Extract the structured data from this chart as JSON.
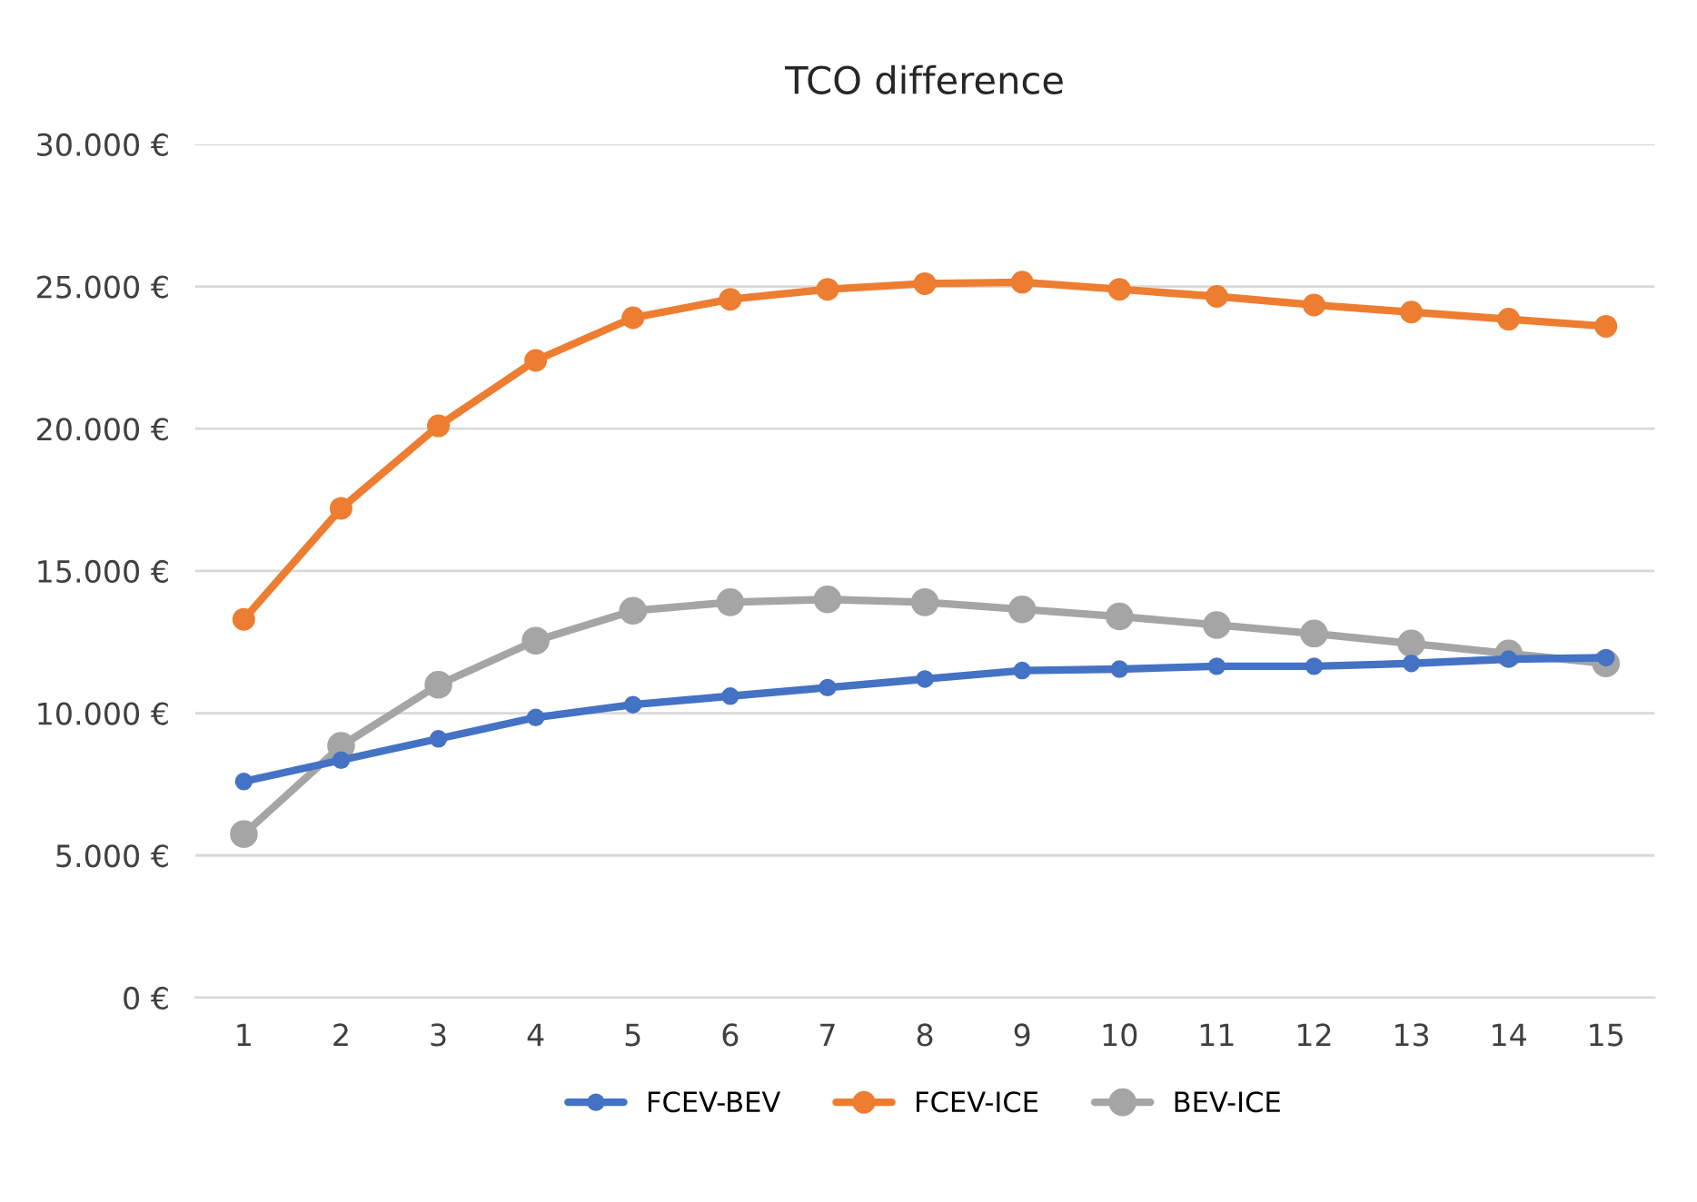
{
  "chart_data": {
    "type": "line",
    "title": "TCO difference",
    "categories": [
      "1",
      "2",
      "3",
      "4",
      "5",
      "6",
      "7",
      "8",
      "9",
      "10",
      "11",
      "12",
      "13",
      "14",
      "15"
    ],
    "series": [
      {
        "name": "FCEV-BEV",
        "color": "#4472c4",
        "values": [
          7600,
          8350,
          9100,
          9850,
          10300,
          10600,
          10900,
          11200,
          11500,
          11550,
          11650,
          11650,
          11750,
          11900,
          11950
        ]
      },
      {
        "name": "FCEV-ICE",
        "color": "#ed7d31",
        "values": [
          13300,
          17200,
          20100,
          22400,
          23900,
          24550,
          24900,
          25100,
          25150,
          24900,
          24650,
          24350,
          24100,
          23850,
          23600
        ]
      },
      {
        "name": "BEV-ICE",
        "color": "#a5a5a5",
        "values": [
          5750,
          8850,
          11000,
          12550,
          13600,
          13900,
          14000,
          13900,
          13650,
          13400,
          13100,
          12800,
          12450,
          12100,
          11750
        ]
      }
    ],
    "ylim": [
      0,
      30000
    ],
    "yticks": [
      {
        "value": 0,
        "label": "0 €"
      },
      {
        "value": 5000,
        "label": "5.000 €"
      },
      {
        "value": 10000,
        "label": "10.000 €"
      },
      {
        "value": 15000,
        "label": "15.000 €"
      },
      {
        "value": 20000,
        "label": "20.000 €"
      },
      {
        "value": 25000,
        "label": "25.000 €"
      },
      {
        "value": 30000,
        "label": "30.000 €"
      }
    ],
    "grid": "y",
    "legend": "bottom",
    "marker": "circle",
    "line_style": "solid"
  }
}
